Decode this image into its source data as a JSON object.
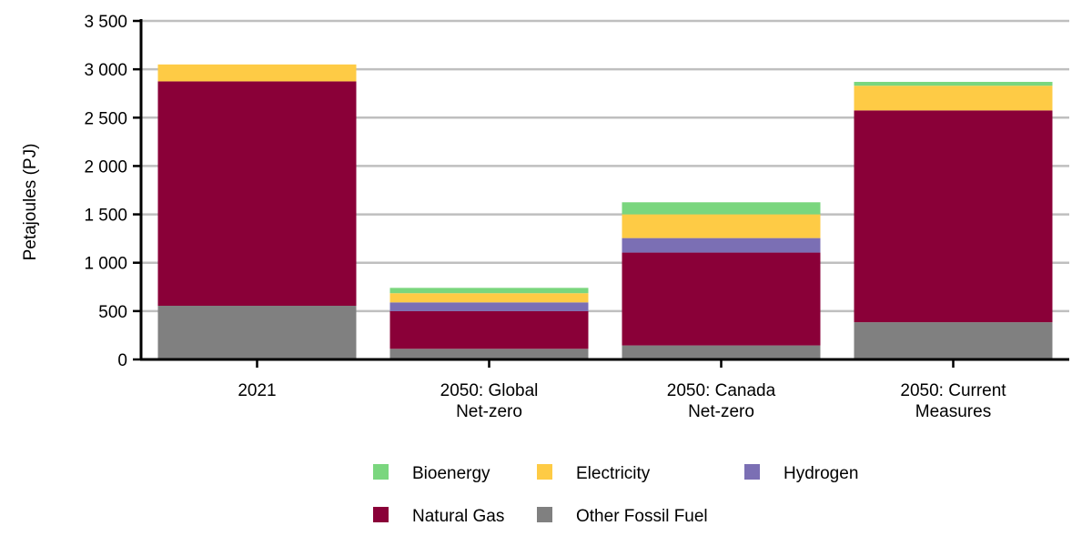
{
  "chart_data": {
    "type": "bar",
    "stacked": true,
    "title": "",
    "xlabel": "",
    "ylabel": "Petajoules (PJ)",
    "ylim": [
      0,
      3500
    ],
    "yticks": [
      0,
      500,
      1000,
      1500,
      2000,
      2500,
      3000,
      3500
    ],
    "ytick_labels": [
      "0",
      "500",
      "1 000",
      "1 500",
      "2 000",
      "2 500",
      "3 000",
      "3 500"
    ],
    "grid": true,
    "categories": [
      [
        "2021"
      ],
      [
        "2050: Global",
        "Net-zero"
      ],
      [
        "2050: Canada",
        "Net-zero"
      ],
      [
        "2050: Current",
        "Measures"
      ]
    ],
    "series": [
      {
        "name": "Other Fossil Fuel",
        "color": "#808080",
        "values": [
          555,
          110,
          145,
          385
        ]
      },
      {
        "name": "Natural Gas",
        "color": "#8a0038",
        "values": [
          2320,
          390,
          960,
          2190
        ]
      },
      {
        "name": "Hydrogen",
        "color": "#7b6fb4",
        "values": [
          0,
          90,
          150,
          0
        ]
      },
      {
        "name": "Electricity",
        "color": "#fecb45",
        "values": [
          175,
          95,
          245,
          255
        ]
      },
      {
        "name": "Bioenergy",
        "color": "#7ad67e",
        "values": [
          0,
          55,
          125,
          40
        ]
      }
    ],
    "legend": {
      "placement": "bottom",
      "order": [
        "Bioenergy",
        "Electricity",
        "Hydrogen",
        "Natural Gas",
        "Other Fossil Fuel"
      ]
    }
  }
}
